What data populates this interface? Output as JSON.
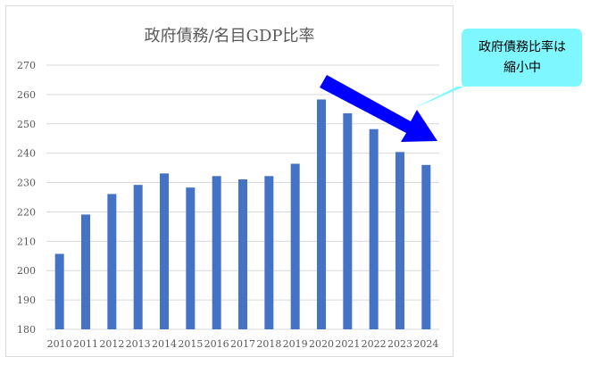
{
  "chart_data": {
    "type": "bar",
    "title": "政府債務/名目GDP比率",
    "categories": [
      "2010",
      "2011",
      "2012",
      "2013",
      "2014",
      "2015",
      "2016",
      "2017",
      "2018",
      "2019",
      "2020",
      "2021",
      "2022",
      "2023",
      "2024"
    ],
    "values": [
      205.7,
      219.1,
      226.1,
      229.2,
      233.1,
      228.3,
      232.2,
      231.1,
      232.2,
      236.4,
      258.3,
      253.6,
      248.2,
      240.4,
      236.0
    ],
    "ylim": [
      180,
      270
    ],
    "yticks": [
      180,
      190,
      200,
      210,
      220,
      230,
      240,
      250,
      260,
      270
    ],
    "xlabel": "",
    "ylabel": "",
    "grid": true,
    "bar_color": "#4472c4"
  },
  "annotation": {
    "lines": [
      "政府債務比率は",
      "縮小中"
    ],
    "bubble_color": "#7ff7ff",
    "arrow_color": "#0000ff"
  }
}
